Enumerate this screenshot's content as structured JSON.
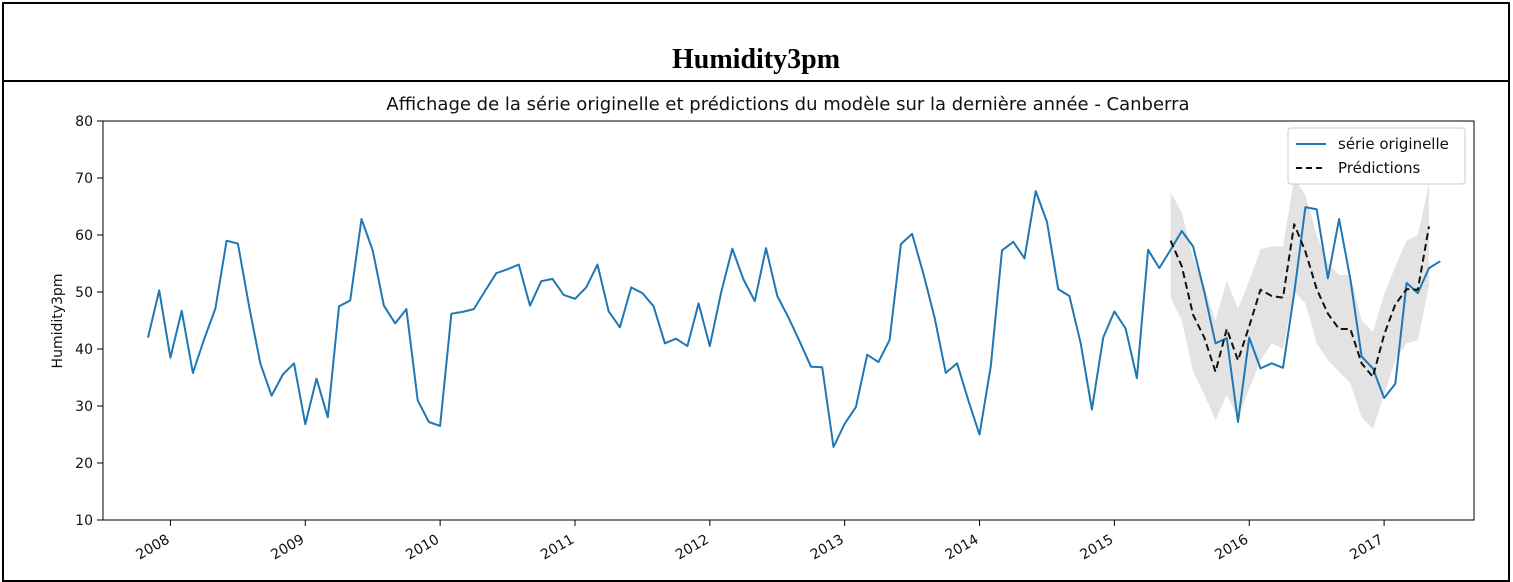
{
  "header": {
    "title": "Humidity3pm"
  },
  "chart_data": {
    "type": "line",
    "title": "Affichage de la série originelle et prédictions du modèle sur la dernière année - Canberra",
    "xlabel": "",
    "ylabel": "Humidity3pm",
    "xlim": [
      "2007-07-01",
      "2017-09-01"
    ],
    "ylim": [
      10,
      80
    ],
    "yticks": [
      10,
      20,
      30,
      40,
      50,
      60,
      70,
      80
    ],
    "xticks": [
      "2008",
      "2009",
      "2010",
      "2011",
      "2012",
      "2013",
      "2014",
      "2015",
      "2016",
      "2017"
    ],
    "grid": false,
    "legend_position": "top-right",
    "colors": {
      "original": "#1f77b4",
      "predictions": "#111111",
      "interval": "#d9d9d9"
    },
    "series": [
      {
        "name": "série originelle",
        "x": [
          "2007-11",
          "2007-12",
          "2008-01",
          "2008-02",
          "2008-03",
          "2008-04",
          "2008-05",
          "2008-06",
          "2008-07",
          "2008-08",
          "2008-09",
          "2008-10",
          "2008-11",
          "2008-12",
          "2009-01",
          "2009-02",
          "2009-03",
          "2009-04",
          "2009-05",
          "2009-06",
          "2009-07",
          "2009-08",
          "2009-09",
          "2009-10",
          "2009-11",
          "2009-12",
          "2010-01",
          "2010-02",
          "2010-03",
          "2010-04",
          "2010-05",
          "2010-06",
          "2010-07",
          "2010-08",
          "2010-09",
          "2010-10",
          "2010-11",
          "2010-12",
          "2011-01",
          "2011-02",
          "2011-03",
          "2011-04",
          "2011-05",
          "2011-06",
          "2011-07",
          "2011-08",
          "2011-09",
          "2011-10",
          "2011-11",
          "2011-12",
          "2012-01",
          "2012-02",
          "2012-03",
          "2012-04",
          "2012-05",
          "2012-06",
          "2012-07",
          "2012-08",
          "2012-09",
          "2012-10",
          "2012-11",
          "2012-12",
          "2013-01",
          "2013-02",
          "2013-03",
          "2013-04",
          "2013-05",
          "2013-06",
          "2013-07",
          "2013-08",
          "2013-09",
          "2013-10",
          "2013-11",
          "2013-12",
          "2014-01",
          "2014-02",
          "2014-03",
          "2014-04",
          "2014-05",
          "2014-06",
          "2014-07",
          "2014-08",
          "2014-09",
          "2014-10",
          "2014-11",
          "2014-12",
          "2015-01",
          "2015-02",
          "2015-03",
          "2015-04",
          "2015-05",
          "2015-06",
          "2015-07",
          "2015-08",
          "2015-09",
          "2015-10",
          "2015-11",
          "2015-12",
          "2016-01",
          "2016-02",
          "2016-03",
          "2016-04",
          "2016-05",
          "2016-06",
          "2016-07",
          "2016-08",
          "2016-09",
          "2016-10",
          "2016-11",
          "2016-12",
          "2017-01",
          "2017-02",
          "2017-03",
          "2017-04",
          "2017-05",
          "2017-06"
        ],
        "values": [
          42,
          50.3,
          38.5,
          46.7,
          35.8,
          41.7,
          47.1,
          59,
          58.5,
          47.5,
          37.5,
          31.8,
          35.5,
          37.5,
          26.8,
          34.8,
          28,
          47.5,
          48.5,
          62.8,
          57.3,
          47.6,
          44.5,
          47,
          31,
          27.2,
          26.5,
          46.2,
          46.5,
          47,
          50.2,
          53.3,
          54,
          54.8,
          47.6,
          51.9,
          52.3,
          49.5,
          48.8,
          50.8,
          54.8,
          46.6,
          43.8,
          50.8,
          49.8,
          47.5,
          41,
          41.8,
          40.5,
          48,
          40.5,
          49.9,
          57.6,
          52.2,
          48.4,
          57.7,
          49.3,
          45.5,
          41.3,
          36.9,
          36.8,
          22.8,
          26.9,
          29.8,
          39,
          37.7,
          41.6,
          58.4,
          60.2,
          53.2,
          45.5,
          35.8,
          37.5,
          31,
          25,
          37,
          57.3,
          58.8,
          55.9,
          67.7,
          62.3,
          50.5,
          49.3,
          41,
          29.4,
          42,
          46.6,
          43.6,
          34.9,
          57.4,
          54.2,
          57.4,
          60.7,
          58,
          50,
          41,
          41.9,
          27.2,
          42,
          36.6,
          37.5,
          36.7,
          49.8,
          64.9,
          64.5,
          52.4,
          62.8,
          52.2,
          38.7,
          36.6,
          31.4,
          33.9,
          51.6,
          49.8,
          54.2,
          55.4
        ]
      },
      {
        "name": "Prédictions",
        "x": [
          "2015-06",
          "2015-07",
          "2015-08",
          "2015-09",
          "2015-10",
          "2015-11",
          "2015-12",
          "2016-01",
          "2016-02",
          "2016-03",
          "2016-04",
          "2016-05",
          "2016-06",
          "2016-07",
          "2016-08",
          "2016-09",
          "2016-10",
          "2016-11",
          "2016-12",
          "2017-01",
          "2017-02",
          "2017-03",
          "2017-04",
          "2017-05",
          "2017-06"
        ],
        "values": [
          59,
          54.5,
          46,
          42,
          36,
          43.5,
          38,
          44,
          50.4,
          49.3,
          49,
          61.9,
          57.1,
          50.5,
          46.2,
          43.5,
          43.5,
          37.5,
          35.1,
          42.5,
          47.8,
          50.5,
          50.4,
          61.5,
          null
        ],
        "lower": [
          49,
          45,
          36,
          32,
          27.5,
          32,
          28,
          33,
          38,
          41,
          40,
          50,
          48,
          41,
          38,
          36,
          34,
          28,
          26,
          32,
          38,
          41,
          41.5,
          51,
          null
        ],
        "upper": [
          67.5,
          64,
          56,
          51,
          45,
          52,
          47,
          52,
          57.5,
          58,
          58,
          70,
          67,
          60,
          55,
          53,
          53,
          45,
          43,
          49.5,
          54.5,
          59,
          60,
          69,
          null
        ]
      }
    ]
  }
}
